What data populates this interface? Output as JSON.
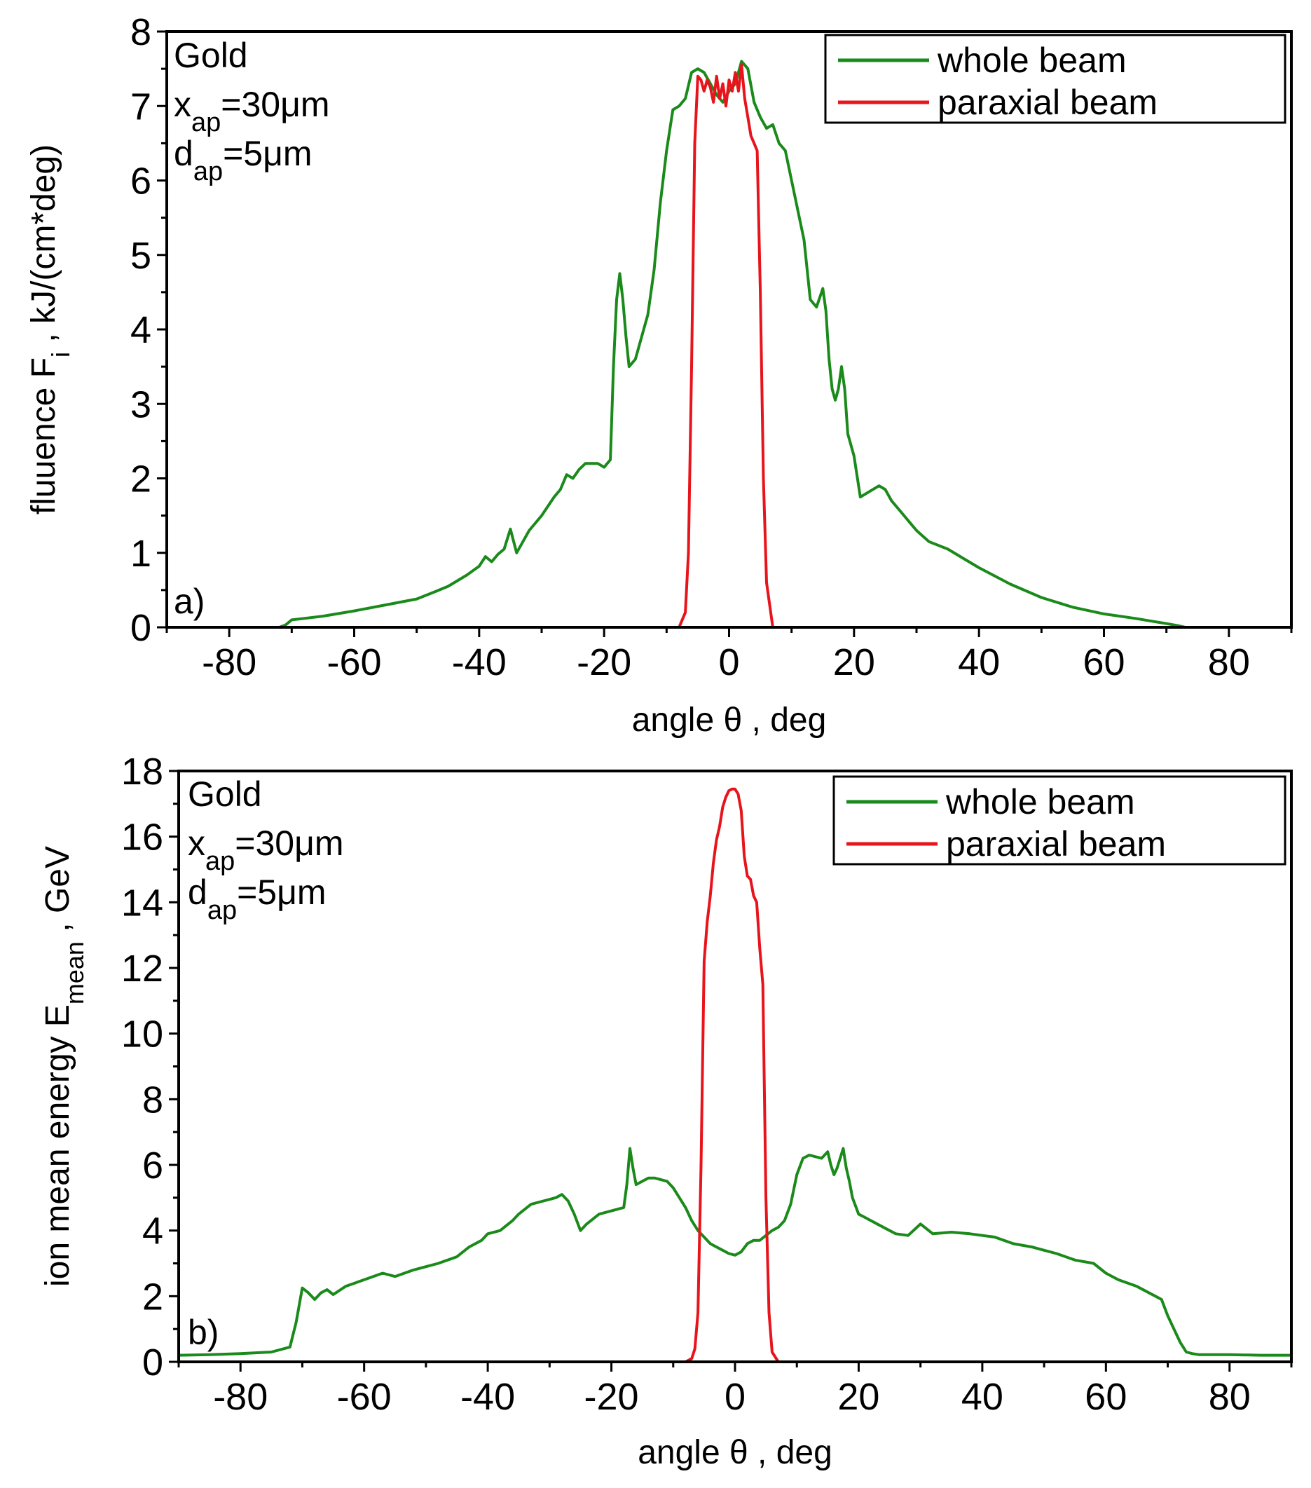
{
  "chart_data": [
    {
      "id": "a",
      "type": "line",
      "xlabel": "angle θ , deg",
      "ylabel": "fluuence F",
      "ylabel_sub": "i",
      "ylabel_suffix": " , kJ/(cm*deg)",
      "xlim": [
        -90,
        90
      ],
      "ylim": [
        0,
        8
      ],
      "x_ticks": [
        -80,
        -60,
        -40,
        -20,
        0,
        20,
        40,
        60,
        80
      ],
      "y_ticks": [
        0,
        1,
        2,
        3,
        4,
        5,
        6,
        7,
        8
      ],
      "grid": false,
      "legend_position": "top-right",
      "panel_label": "a)",
      "annotations": [
        {
          "text": "Gold"
        },
        {
          "main": "x",
          "sub": "ap",
          "rest": "=30μm"
        },
        {
          "main": "d",
          "sub": "ap",
          "rest": "=5μm"
        }
      ],
      "series": [
        {
          "name": "whole beam",
          "color": "#1a8a1a",
          "x": [
            -90,
            -72,
            -71,
            -70,
            -68,
            -65,
            -60,
            -55,
            -50,
            -47,
            -45,
            -42,
            -40,
            -39,
            -38,
            -37,
            -36,
            -35,
            -34,
            -33,
            -32,
            -30,
            -28,
            -27,
            -26,
            -25,
            -24,
            -23,
            -22,
            -21,
            -20,
            -19,
            -18.5,
            -18,
            -17.5,
            -17,
            -16.5,
            -16,
            -15,
            -14,
            -13,
            -12,
            -11,
            -10,
            -9,
            -8,
            -7,
            -6,
            -5,
            -4,
            -3,
            -2,
            -1,
            0,
            1,
            2,
            3,
            4,
            5,
            6,
            7,
            8,
            9,
            10,
            11,
            12,
            13,
            14,
            15,
            15.5,
            16,
            16.5,
            17,
            17.5,
            18,
            18.5,
            19,
            20,
            21,
            22,
            23,
            24,
            25,
            26,
            27,
            28,
            29,
            30,
            32,
            35,
            38,
            40,
            45,
            50,
            55,
            60,
            65,
            70,
            72,
            73,
            74,
            90
          ],
          "y": [
            0,
            0,
            0.03,
            0.1,
            0.12,
            0.15,
            0.22,
            0.3,
            0.38,
            0.48,
            0.55,
            0.7,
            0.82,
            0.95,
            0.88,
            0.98,
            1.05,
            1.32,
            1.0,
            1.15,
            1.3,
            1.5,
            1.75,
            1.85,
            2.05,
            2.0,
            2.12,
            2.2,
            2.2,
            2.2,
            2.15,
            2.25,
            3.5,
            4.4,
            4.75,
            4.4,
            3.9,
            3.5,
            3.6,
            3.9,
            4.2,
            4.8,
            5.7,
            6.4,
            6.95,
            7.0,
            7.1,
            7.45,
            7.5,
            7.45,
            7.3,
            7.15,
            7.05,
            7.2,
            7.3,
            7.6,
            7.5,
            7.05,
            6.85,
            6.7,
            6.75,
            6.5,
            6.4,
            6.0,
            5.6,
            5.2,
            4.4,
            4.3,
            4.55,
            4.25,
            3.6,
            3.2,
            3.05,
            3.2,
            3.5,
            3.2,
            2.6,
            2.3,
            1.75,
            1.8,
            1.85,
            1.9,
            1.85,
            1.7,
            1.6,
            1.5,
            1.4,
            1.3,
            1.15,
            1.05,
            0.9,
            0.8,
            0.58,
            0.4,
            0.27,
            0.18,
            0.12,
            0.05,
            0.02,
            0,
            0,
            0
          ]
        },
        {
          "name": "paraxial beam",
          "color": "#e8141c",
          "x": [
            -90,
            -8,
            -7,
            -6.5,
            -6,
            -5.5,
            -5,
            -4.5,
            -4,
            -3.5,
            -3,
            -2.5,
            -2,
            -1.5,
            -1,
            -0.5,
            0,
            0.5,
            1,
            1.5,
            2,
            2.5,
            3,
            3.5,
            4,
            4.5,
            5,
            5.5,
            6,
            7,
            90
          ],
          "y": [
            0,
            0,
            0.2,
            1.0,
            3.5,
            6.5,
            7.4,
            7.35,
            7.2,
            7.35,
            7.25,
            7.05,
            7.4,
            7.1,
            7.3,
            7.0,
            7.35,
            7.2,
            7.45,
            7.2,
            7.55,
            7.1,
            6.85,
            6.6,
            6.5,
            6.4,
            4.5,
            2.0,
            0.6,
            0,
            0
          ]
        }
      ]
    },
    {
      "id": "b",
      "type": "line",
      "xlabel": "angle θ , deg",
      "ylabel": "ion mean energy E",
      "ylabel_sub": "mean",
      "ylabel_suffix": " , GeV",
      "xlim": [
        -90,
        90
      ],
      "ylim": [
        0,
        18
      ],
      "x_ticks": [
        -80,
        -60,
        -40,
        -20,
        0,
        20,
        40,
        60,
        80
      ],
      "y_ticks": [
        0,
        2,
        4,
        6,
        8,
        10,
        12,
        14,
        16,
        18
      ],
      "grid": false,
      "legend_position": "top-right",
      "panel_label": "b)",
      "annotations": [
        {
          "text": "Gold"
        },
        {
          "main": "x",
          "sub": "ap",
          "rest": "=30μm"
        },
        {
          "main": "d",
          "sub": "ap",
          "rest": "=5μm"
        }
      ],
      "series": [
        {
          "name": "whole beam",
          "color": "#1a8a1a",
          "x": [
            -90,
            -85,
            -80,
            -75,
            -72,
            -71,
            -70,
            -69,
            -68,
            -67,
            -66,
            -65,
            -63,
            -60,
            -57,
            -55,
            -52,
            -50,
            -48,
            -45,
            -43,
            -41,
            -40,
            -38,
            -36,
            -35,
            -33,
            -31,
            -30,
            -29,
            -28,
            -27,
            -26,
            -25,
            -24,
            -22,
            -20,
            -19,
            -18,
            -17.5,
            -17,
            -16.5,
            -16,
            -15,
            -14,
            -13,
            -12,
            -11,
            -10,
            -9,
            -8,
            -7,
            -6,
            -5,
            -4,
            -3,
            -2,
            -1,
            0,
            1,
            2,
            3,
            4,
            5,
            6,
            7,
            8,
            9,
            10,
            11,
            12,
            13,
            14,
            15,
            15.5,
            16,
            16.5,
            17,
            17.5,
            18,
            18.5,
            19,
            20,
            21,
            22,
            23,
            24,
            25,
            26,
            28,
            30,
            32,
            35,
            38,
            40,
            42,
            45,
            48,
            50,
            52,
            55,
            58,
            60,
            62,
            65,
            67,
            68,
            69,
            70,
            71,
            72,
            73,
            74,
            75,
            80,
            85,
            90
          ],
          "y": [
            0.2,
            0.22,
            0.25,
            0.3,
            0.45,
            1.2,
            2.25,
            2.1,
            1.9,
            2.1,
            2.2,
            2.05,
            2.3,
            2.5,
            2.7,
            2.6,
            2.8,
            2.9,
            3.0,
            3.2,
            3.5,
            3.7,
            3.9,
            4.0,
            4.3,
            4.5,
            4.8,
            4.9,
            4.95,
            5.0,
            5.1,
            4.9,
            4.5,
            4.0,
            4.2,
            4.5,
            4.6,
            4.65,
            4.7,
            5.4,
            6.5,
            5.9,
            5.4,
            5.5,
            5.6,
            5.6,
            5.55,
            5.5,
            5.3,
            5.0,
            4.7,
            4.3,
            4.0,
            3.8,
            3.6,
            3.5,
            3.4,
            3.3,
            3.25,
            3.35,
            3.6,
            3.7,
            3.7,
            3.85,
            4.0,
            4.1,
            4.3,
            4.8,
            5.7,
            6.2,
            6.3,
            6.25,
            6.2,
            6.4,
            6.0,
            5.7,
            5.9,
            6.2,
            6.5,
            5.9,
            5.5,
            5.0,
            4.5,
            4.4,
            4.3,
            4.2,
            4.1,
            4.0,
            3.9,
            3.85,
            4.2,
            3.9,
            3.95,
            3.9,
            3.85,
            3.8,
            3.6,
            3.5,
            3.4,
            3.3,
            3.1,
            3.0,
            2.7,
            2.5,
            2.3,
            2.1,
            2.0,
            1.9,
            1.4,
            1.0,
            0.6,
            0.3,
            0.25,
            0.22,
            0.22,
            0.2,
            0.2
          ]
        },
        {
          "name": "paraxial beam",
          "color": "#e8141c",
          "x": [
            -90,
            -8,
            -7,
            -6.5,
            -6,
            -5.5,
            -5,
            -4.5,
            -4,
            -3.5,
            -3,
            -2.5,
            -2,
            -1.5,
            -1,
            -0.5,
            0,
            0.5,
            1,
            1.5,
            2,
            2.5,
            3,
            3.5,
            4,
            4.5,
            5,
            5.5,
            6,
            7,
            90
          ],
          "y": [
            0,
            0,
            0.1,
            0.4,
            1.5,
            6.0,
            12.2,
            13.4,
            14.2,
            15.2,
            15.9,
            16.3,
            16.9,
            17.2,
            17.4,
            17.45,
            17.45,
            17.3,
            16.8,
            15.4,
            14.8,
            14.7,
            14.2,
            14.0,
            12.6,
            11.5,
            5.0,
            1.5,
            0.3,
            0,
            0
          ]
        }
      ]
    }
  ]
}
